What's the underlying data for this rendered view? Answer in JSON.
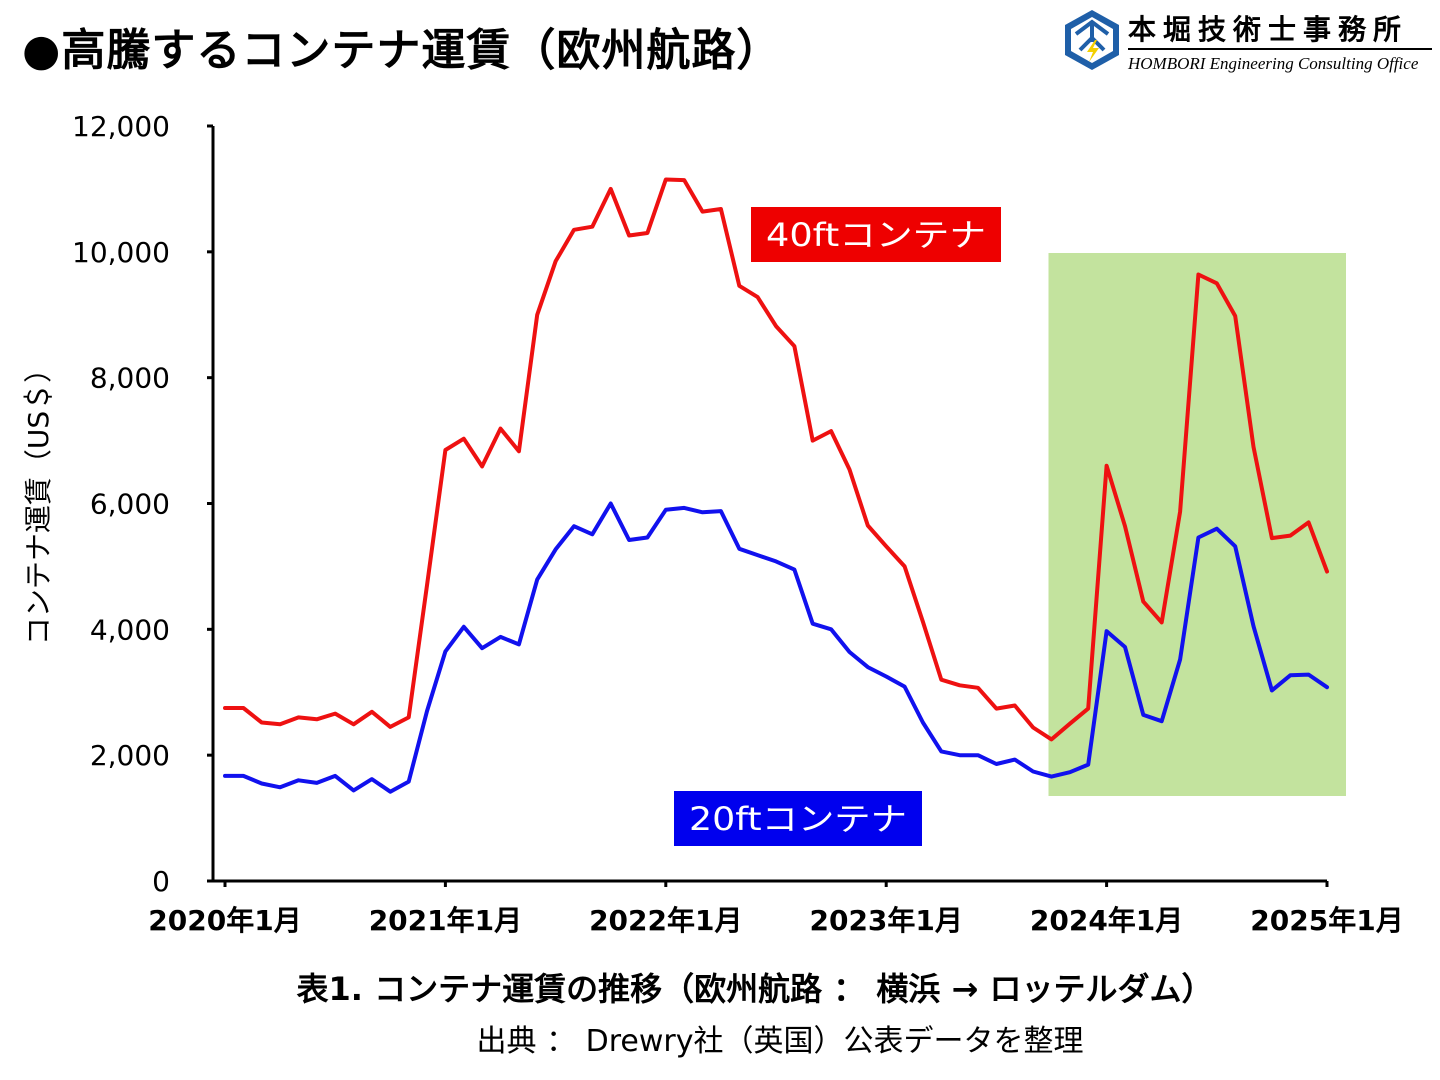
{
  "header": {
    "title": "●高騰するコンテナ運賃（欧州航路）"
  },
  "logo": {
    "name": "本堀技術士事務所",
    "subtitle": "HOMBORI Engineering Consulting Office",
    "icon": "lightning-logo-icon",
    "brand_color": "#1f5fa8"
  },
  "chart_data": {
    "type": "line",
    "ylabel": "コンテナ運賃（US＄）",
    "xlabel": "",
    "ylim": [
      0,
      12000
    ],
    "yticks": [
      "0",
      "2,000",
      "4,000",
      "6,000",
      "8,000",
      "10,000",
      "12,000"
    ],
    "xticks": [
      "2020年1月",
      "2021年1月",
      "2022年1月",
      "2023年1月",
      "2024年1月",
      "2025年1月"
    ],
    "x_start": "2020-01",
    "x_end": "2025-01",
    "highlight_period": [
      "2023-10",
      "2025-01"
    ],
    "highlight_color": "#c3e39e",
    "series": [
      {
        "name": "40ftコンテナ",
        "color": "#ee1111",
        "label_bg": "#ee0000",
        "x": [
          "2020-01",
          "2020-02",
          "2020-03",
          "2020-04",
          "2020-05",
          "2020-06",
          "2020-07",
          "2020-08",
          "2020-09",
          "2020-10",
          "2020-11",
          "2020-12",
          "2021-01",
          "2021-02",
          "2021-03",
          "2021-04",
          "2021-05",
          "2021-06",
          "2021-07",
          "2021-08",
          "2021-09",
          "2021-10",
          "2021-11",
          "2021-12",
          "2022-01",
          "2022-02",
          "2022-03",
          "2022-04",
          "2022-05",
          "2022-06",
          "2022-07",
          "2022-08",
          "2022-09",
          "2022-10",
          "2022-11",
          "2022-12",
          "2023-01",
          "2023-02",
          "2023-03",
          "2023-04",
          "2023-05",
          "2023-06",
          "2023-07",
          "2023-08",
          "2023-09",
          "2023-10",
          "2023-11",
          "2023-12",
          "2024-01",
          "2024-02",
          "2024-03",
          "2024-04",
          "2024-05",
          "2024-06",
          "2024-07",
          "2024-08",
          "2024-09",
          "2024-10",
          "2024-11",
          "2024-12",
          "2025-01"
        ],
        "values": [
          2750,
          2750,
          2520,
          2490,
          2600,
          2570,
          2660,
          2490,
          2690,
          2450,
          2600,
          4700,
          6850,
          7030,
          6590,
          7190,
          6830,
          9000,
          9850,
          10350,
          10400,
          11000,
          10260,
          10300,
          11150,
          11140,
          10640,
          10680,
          9460,
          9280,
          8820,
          8500,
          7000,
          7150,
          6540,
          5650,
          5320,
          5000,
          4120,
          3200,
          3110,
          3070,
          2740,
          2790,
          2440,
          2250,
          2500,
          2740,
          6600,
          5640,
          4440,
          4110,
          5870,
          9640,
          9500,
          8980,
          6900,
          5450,
          5490,
          5700,
          4920
        ]
      },
      {
        "name": "20ftコンテナ",
        "color": "#1111ee",
        "label_bg": "#0000ee",
        "x": [
          "2020-01",
          "2020-02",
          "2020-03",
          "2020-04",
          "2020-05",
          "2020-06",
          "2020-07",
          "2020-08",
          "2020-09",
          "2020-10",
          "2020-11",
          "2020-12",
          "2021-01",
          "2021-02",
          "2021-03",
          "2021-04",
          "2021-05",
          "2021-06",
          "2021-07",
          "2021-08",
          "2021-09",
          "2021-10",
          "2021-11",
          "2021-12",
          "2022-01",
          "2022-02",
          "2022-03",
          "2022-04",
          "2022-05",
          "2022-06",
          "2022-07",
          "2022-08",
          "2022-09",
          "2022-10",
          "2022-11",
          "2022-12",
          "2023-01",
          "2023-02",
          "2023-03",
          "2023-04",
          "2023-05",
          "2023-06",
          "2023-07",
          "2023-08",
          "2023-09",
          "2023-10",
          "2023-11",
          "2023-12",
          "2024-01",
          "2024-02",
          "2024-03",
          "2024-04",
          "2024-05",
          "2024-06",
          "2024-07",
          "2024-08",
          "2024-09",
          "2024-10",
          "2024-11",
          "2024-12",
          "2025-01"
        ],
        "values": [
          1670,
          1670,
          1550,
          1490,
          1600,
          1560,
          1670,
          1440,
          1620,
          1420,
          1580,
          2700,
          3650,
          4040,
          3700,
          3880,
          3760,
          4790,
          5270,
          5640,
          5510,
          6000,
          5420,
          5460,
          5900,
          5930,
          5860,
          5880,
          5280,
          5180,
          5080,
          4950,
          4090,
          4000,
          3640,
          3400,
          3250,
          3090,
          2520,
          2060,
          2000,
          2000,
          1860,
          1930,
          1740,
          1660,
          1730,
          1850,
          3970,
          3720,
          2640,
          2540,
          3520,
          5460,
          5600,
          5320,
          4050,
          3030,
          3270,
          3280,
          3080
        ]
      }
    ]
  },
  "caption": "表1. コンテナ運賃の推移（欧州航路 ： 横浜 → ロッテルダム）",
  "source": "出典 ： Drewry社（英国）公表データを整理"
}
